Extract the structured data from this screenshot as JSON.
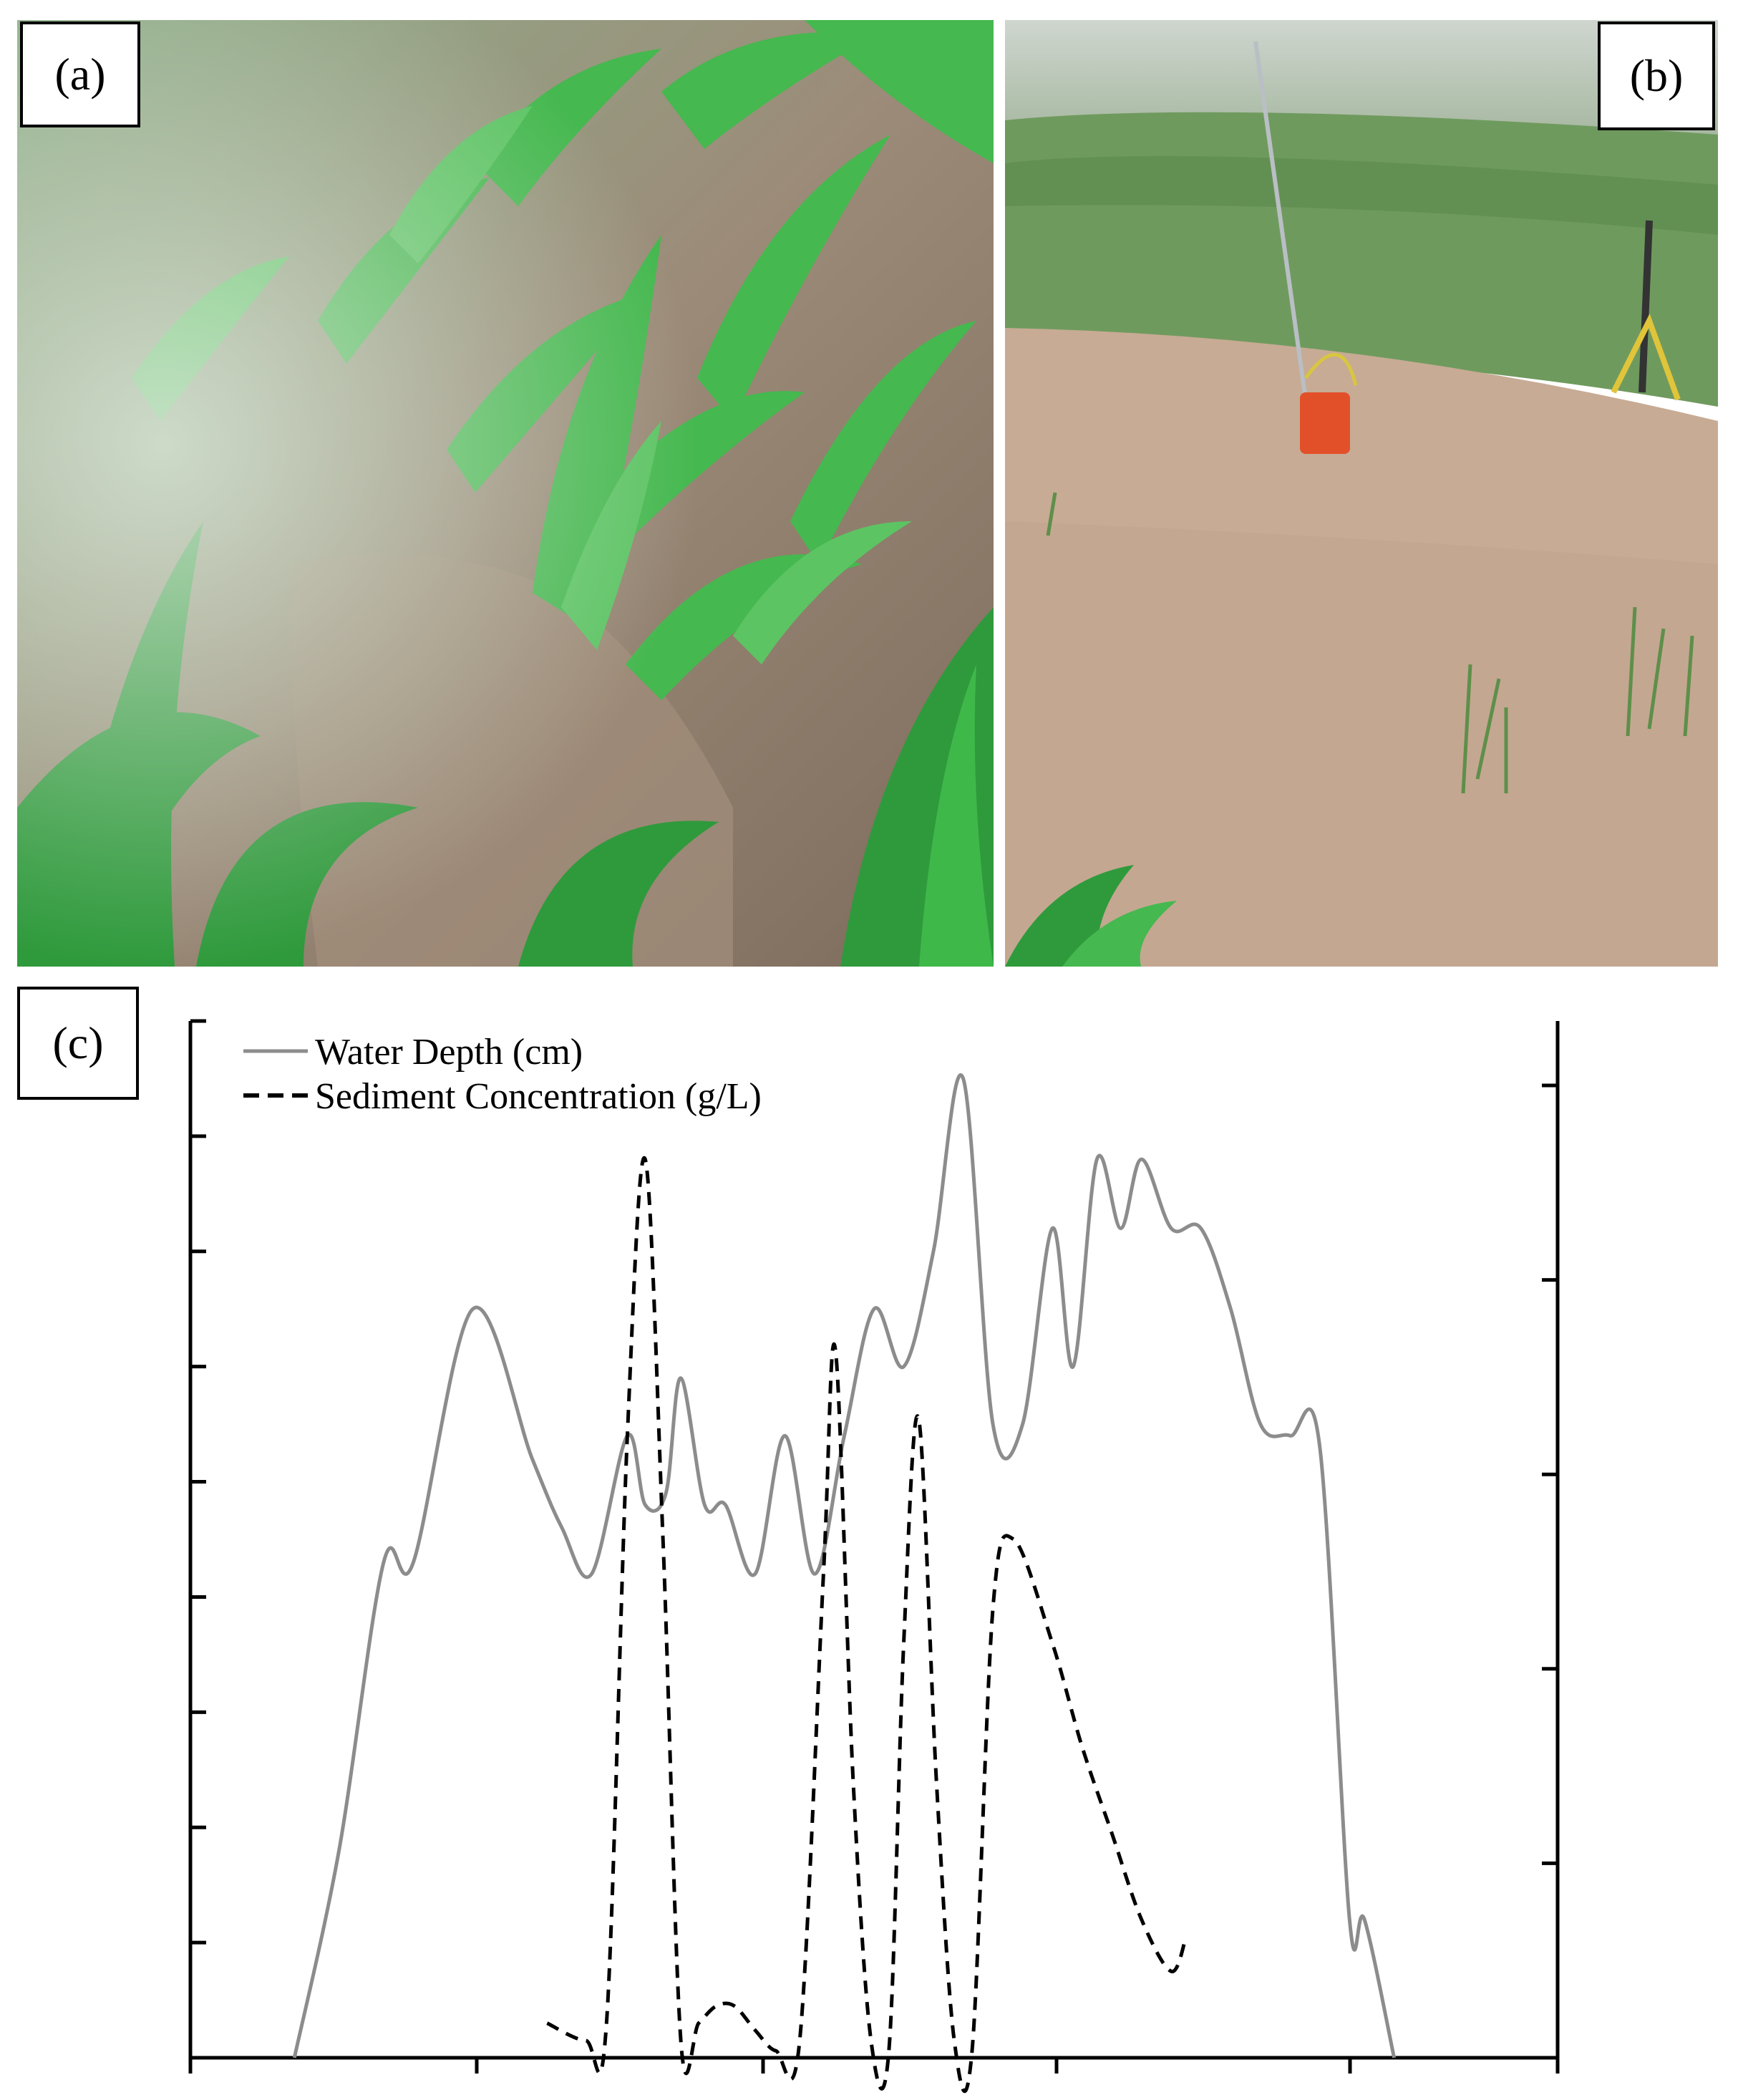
{
  "panels": {
    "a": {
      "label": "(a)"
    },
    "b": {
      "label": "(b)"
    },
    "c": {
      "label": "(c)"
    }
  },
  "colors": {
    "water_depth": "#8c8c8c",
    "sediment": "#000000",
    "corn_green": "#3fae45",
    "muddy_water": "#c7ab94",
    "marker_orange": "#e2502a"
  },
  "chart_data": {
    "type": "line",
    "title": "",
    "xlabel": "",
    "ylabel_left": "",
    "ylabel_right": "",
    "grid": false,
    "legend": "top-left",
    "x_ticks_labels": [],
    "series": [
      {
        "name": "Water Depth (cm)",
        "axis": "left",
        "style": "solid",
        "points": [
          [
            0,
            0
          ],
          [
            0.15,
            1.8
          ],
          [
            0.3,
            4.3
          ],
          [
            0.4,
            4.3
          ],
          [
            0.6,
            6.5
          ],
          [
            0.8,
            5.2
          ],
          [
            0.9,
            4.6
          ],
          [
            1.0,
            4.2
          ],
          [
            1.12,
            5.4
          ],
          [
            1.18,
            4.8
          ],
          [
            1.25,
            4.9
          ],
          [
            1.3,
            5.9
          ],
          [
            1.38,
            4.8
          ],
          [
            1.45,
            4.8
          ],
          [
            1.55,
            4.2
          ],
          [
            1.65,
            5.4
          ],
          [
            1.75,
            4.2
          ],
          [
            1.85,
            5.4
          ],
          [
            1.95,
            6.5
          ],
          [
            2.05,
            6.0
          ],
          [
            2.15,
            7.0
          ],
          [
            2.25,
            8.5
          ],
          [
            2.35,
            5.5
          ],
          [
            2.45,
            5.5
          ],
          [
            2.55,
            7.2
          ],
          [
            2.62,
            6.0
          ],
          [
            2.7,
            7.8
          ],
          [
            2.78,
            7.2
          ],
          [
            2.85,
            7.8
          ],
          [
            2.95,
            7.2
          ],
          [
            3.05,
            7.2
          ],
          [
            3.15,
            6.5
          ],
          [
            3.25,
            5.5
          ],
          [
            3.35,
            5.4
          ],
          [
            3.45,
            5.3
          ],
          [
            3.55,
            1.2
          ],
          [
            3.6,
            1.2
          ],
          [
            3.7,
            0
          ]
        ]
      },
      {
        "name": "Sediment Concentration (g/L)",
        "axis": "right",
        "style": "dashed",
        "points": [
          [
            0.85,
            0.1
          ],
          [
            0.98,
            0.05
          ],
          [
            1.05,
            0.1
          ],
          [
            1.12,
            1.8
          ],
          [
            1.18,
            2.6
          ],
          [
            1.24,
            1.5
          ],
          [
            1.3,
            0.05
          ],
          [
            1.36,
            0.1
          ],
          [
            1.42,
            0.15
          ],
          [
            1.48,
            0.15
          ],
          [
            1.55,
            0.08
          ],
          [
            1.62,
            0.02
          ],
          [
            1.7,
            0.05
          ],
          [
            1.78,
            1.4
          ],
          [
            1.82,
            2.05
          ],
          [
            1.88,
            0.8
          ],
          [
            1.94,
            0.05
          ],
          [
            2.0,
            0.02
          ],
          [
            2.05,
            1.2
          ],
          [
            2.1,
            1.85
          ],
          [
            2.16,
            0.8
          ],
          [
            2.22,
            0.05
          ],
          [
            2.28,
            0.02
          ],
          [
            2.35,
            1.3
          ],
          [
            2.42,
            1.5
          ],
          [
            2.55,
            1.2
          ],
          [
            2.65,
            0.9
          ],
          [
            2.75,
            0.65
          ],
          [
            2.85,
            0.4
          ],
          [
            2.95,
            0.25
          ],
          [
            3.0,
            0.35
          ]
        ]
      }
    ],
    "xlim": [
      -0.35,
      4.25
    ],
    "ylim_left": [
      0,
      9
    ],
    "ylim_right": [
      0,
      3
    ],
    "left_tick_count": 10,
    "right_tick_count": 6,
    "x_tick_count": 6
  }
}
